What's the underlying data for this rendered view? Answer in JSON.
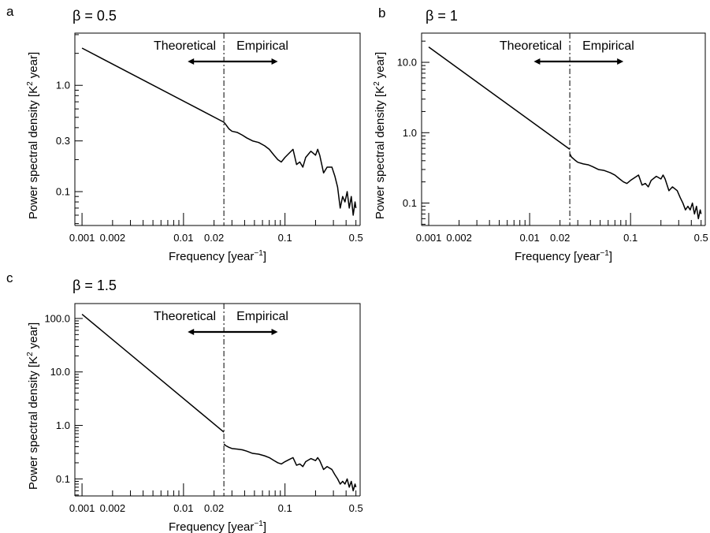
{
  "chart_data": [
    {
      "panel": "a",
      "type": "line",
      "title": "β = 0.5",
      "xlabel": "Frequency [year",
      "xlabel_sup": "−1",
      "xlabel_end": "]",
      "ylabel": "Power spectral density [K",
      "ylabel_sup": "2",
      "ylabel_end": " year]",
      "x_scale": "log",
      "y_scale": "log",
      "xlim": [
        0.00085,
        0.55
      ],
      "ylim": [
        0.048,
        3.1
      ],
      "x_ticks": [
        0.001,
        0.002,
        0.01,
        0.02,
        0.1,
        0.5
      ],
      "x_tick_labels": [
        "0.001",
        "0.002",
        "0.01",
        "0.02",
        "0.1",
        "0.5"
      ],
      "y_ticks": [
        0.1,
        0.3,
        1.0
      ],
      "y_tick_labels": [
        "0.1",
        "0.3",
        "1.0"
      ],
      "divider_x": 0.025,
      "regions": {
        "left": "Theoretical",
        "right": "Empirical"
      },
      "arrow_x": [
        0.011,
        0.085
      ],
      "theoretical": {
        "x": [
          0.001,
          0.025
        ],
        "y": [
          2.24,
          0.45
        ]
      },
      "empirical": {
        "x": [
          0.025,
          0.026,
          0.028,
          0.03,
          0.034,
          0.038,
          0.042,
          0.048,
          0.055,
          0.063,
          0.07,
          0.078,
          0.085,
          0.092,
          0.1,
          0.11,
          0.12,
          0.13,
          0.14,
          0.15,
          0.16,
          0.18,
          0.2,
          0.21,
          0.22,
          0.24,
          0.26,
          0.29,
          0.31,
          0.33,
          0.35,
          0.37,
          0.39,
          0.41,
          0.43,
          0.45,
          0.47,
          0.49,
          0.5
        ],
        "y": [
          0.45,
          0.43,
          0.39,
          0.37,
          0.36,
          0.34,
          0.32,
          0.3,
          0.29,
          0.27,
          0.25,
          0.22,
          0.2,
          0.19,
          0.21,
          0.23,
          0.25,
          0.18,
          0.19,
          0.17,
          0.21,
          0.24,
          0.22,
          0.25,
          0.22,
          0.15,
          0.17,
          0.17,
          0.14,
          0.11,
          0.07,
          0.09,
          0.08,
          0.1,
          0.07,
          0.09,
          0.06,
          0.08,
          0.07
        ]
      }
    },
    {
      "panel": "b",
      "type": "line",
      "title": "β = 1",
      "xlabel": "Frequency [year",
      "xlabel_sup": "−1",
      "xlabel_end": "]",
      "ylabel": "Power spectral density [K",
      "ylabel_sup": "2",
      "ylabel_end": " year]",
      "x_scale": "log",
      "y_scale": "log",
      "xlim": [
        0.00085,
        0.55
      ],
      "ylim": [
        0.048,
        26
      ],
      "x_ticks": [
        0.001,
        0.002,
        0.01,
        0.02,
        0.1,
        0.5
      ],
      "x_tick_labels": [
        "0.001",
        "0.002",
        "0.01",
        "0.02",
        "0.1",
        "0.5"
      ],
      "y_ticks": [
        0.1,
        1.0,
        10.0
      ],
      "y_tick_labels": [
        "0.1",
        "1.0",
        "10.0"
      ],
      "divider_x": 0.025,
      "regions": {
        "left": "Theoretical",
        "right": "Empirical"
      },
      "arrow_x": [
        0.011,
        0.085
      ],
      "theoretical": {
        "x": [
          0.001,
          0.025
        ],
        "y": [
          16.5,
          0.58
        ]
      },
      "empirical": {
        "x": [
          0.025,
          0.026,
          0.028,
          0.03,
          0.034,
          0.038,
          0.042,
          0.048,
          0.055,
          0.063,
          0.07,
          0.078,
          0.085,
          0.092,
          0.1,
          0.11,
          0.12,
          0.13,
          0.14,
          0.15,
          0.16,
          0.18,
          0.2,
          0.21,
          0.22,
          0.24,
          0.26,
          0.29,
          0.31,
          0.33,
          0.35,
          0.37,
          0.39,
          0.41,
          0.43,
          0.45,
          0.47,
          0.49,
          0.5
        ],
        "y": [
          0.5,
          0.45,
          0.41,
          0.38,
          0.36,
          0.35,
          0.33,
          0.3,
          0.29,
          0.27,
          0.25,
          0.22,
          0.2,
          0.19,
          0.21,
          0.23,
          0.25,
          0.18,
          0.19,
          0.17,
          0.21,
          0.24,
          0.22,
          0.25,
          0.22,
          0.15,
          0.17,
          0.15,
          0.12,
          0.1,
          0.08,
          0.09,
          0.08,
          0.1,
          0.07,
          0.09,
          0.06,
          0.08,
          0.07
        ]
      }
    },
    {
      "panel": "c",
      "type": "line",
      "title": "β = 1.5",
      "xlabel": "Frequency [year",
      "xlabel_sup": "−1",
      "xlabel_end": "]",
      "ylabel": "Power spectral density [K",
      "ylabel_sup": "2",
      "ylabel_end": " year]",
      "x_scale": "log",
      "y_scale": "log",
      "xlim": [
        0.00085,
        0.55
      ],
      "ylim": [
        0.048,
        190
      ],
      "x_ticks": [
        0.001,
        0.002,
        0.01,
        0.02,
        0.1,
        0.5
      ],
      "x_tick_labels": [
        "0.001",
        "0.002",
        "0.01",
        "0.02",
        "0.1",
        "0.5"
      ],
      "y_ticks": [
        0.1,
        1.0,
        10.0,
        100.0
      ],
      "y_tick_labels": [
        "0.1",
        "1.0",
        "10.0",
        "100.0"
      ],
      "divider_x": 0.025,
      "regions": {
        "left": "Theoretical",
        "right": "Empirical"
      },
      "arrow_x": [
        0.011,
        0.085
      ],
      "theoretical": {
        "x": [
          0.001,
          0.025
        ],
        "y": [
          120,
          0.75
        ]
      },
      "empirical": {
        "x": [
          0.025,
          0.026,
          0.028,
          0.03,
          0.034,
          0.038,
          0.042,
          0.048,
          0.055,
          0.063,
          0.07,
          0.078,
          0.085,
          0.092,
          0.1,
          0.11,
          0.12,
          0.13,
          0.14,
          0.15,
          0.16,
          0.18,
          0.2,
          0.21,
          0.22,
          0.24,
          0.26,
          0.29,
          0.31,
          0.33,
          0.35,
          0.37,
          0.39,
          0.41,
          0.43,
          0.45,
          0.47,
          0.49,
          0.5
        ],
        "y": [
          0.45,
          0.42,
          0.39,
          0.37,
          0.36,
          0.35,
          0.33,
          0.3,
          0.29,
          0.27,
          0.25,
          0.22,
          0.2,
          0.19,
          0.21,
          0.23,
          0.25,
          0.18,
          0.19,
          0.17,
          0.21,
          0.24,
          0.22,
          0.25,
          0.22,
          0.15,
          0.17,
          0.15,
          0.12,
          0.1,
          0.08,
          0.09,
          0.08,
          0.1,
          0.07,
          0.09,
          0.06,
          0.08,
          0.07
        ]
      }
    }
  ]
}
